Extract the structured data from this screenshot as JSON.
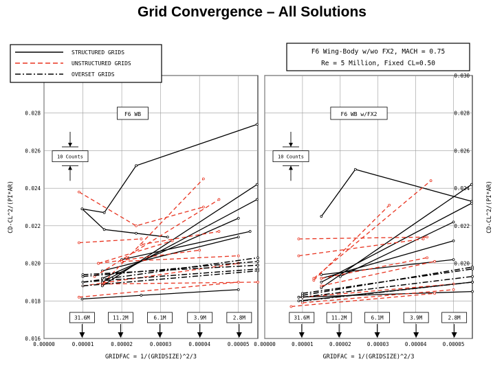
{
  "page_title": "Grid Convergence – All Solutions",
  "legend": [
    {
      "label": "STRUCTURED GRIDS",
      "style": "solid",
      "color": "#000000"
    },
    {
      "label": "UNSTRUCTURED GRIDS",
      "style": "dashed",
      "color": "#e8321e"
    },
    {
      "label": "OVERSET GRIDS",
      "style": "dashdot",
      "color": "#000000"
    }
  ],
  "info_box": {
    "line1": "F6 Wing-Body w/wo FX2, MACH = 0.75",
    "line2": "Re = 5 Million, Fixed CL=0.50"
  },
  "scale_marker": "10 Counts",
  "grid_sizes": [
    {
      "label": "31.6M",
      "x": 9.8e-06
    },
    {
      "label": "11.2M",
      "x": 1.97e-05
    },
    {
      "label": "6.1M",
      "x": 2.98e-05
    },
    {
      "label": "3.9M",
      "x": 4.01e-05
    },
    {
      "label": "2.8M",
      "x": 5.02e-05
    }
  ],
  "chart_data": [
    {
      "type": "line",
      "panel_label": "F6 WB",
      "xlabel": "GRIDFAC = 1/(GRIDSIZE)^2/3",
      "ylabel": "CD-CL^2/(PI*AR)",
      "xlim": [
        0,
        5.5e-05
      ],
      "ylim": [
        0.016,
        0.03
      ],
      "xticks": [
        "0.00000",
        "0.00001",
        "0.00002",
        "0.00003",
        "0.00004",
        "0.00005"
      ],
      "yticks": [
        "0.016",
        "0.018",
        "0.020",
        "0.022",
        "0.024",
        "0.026",
        "0.028"
      ],
      "grid": true,
      "series": [
        {
          "group": "structured",
          "x": [
            9.8e-06,
            1.55e-05,
            2.37e-05,
            5.48e-05
          ],
          "y": [
            0.0229,
            0.0227,
            0.0252,
            0.0274
          ]
        },
        {
          "group": "structured",
          "x": [
            9.8e-06,
            1.55e-05,
            2.37e-05,
            3.18e-05
          ],
          "y": [
            0.0229,
            0.0218,
            0.0216,
            0.0214
          ]
        },
        {
          "group": "structured",
          "x": [
            1.5e-05,
            5.48e-05
          ],
          "y": [
            0.0188,
            0.0242
          ]
        },
        {
          "group": "structured",
          "x": [
            1.5e-05,
            5.48e-05
          ],
          "y": [
            0.019,
            0.0234
          ]
        },
        {
          "group": "structured",
          "x": [
            1.5e-05,
            5e-05
          ],
          "y": [
            0.0192,
            0.0224
          ]
        },
        {
          "group": "structured",
          "x": [
            1.5e-05,
            5e-05
          ],
          "y": [
            0.0196,
            0.0214
          ]
        },
        {
          "group": "structured",
          "x": [
            2e-05,
            5.3e-05
          ],
          "y": [
            0.0202,
            0.0217
          ]
        },
        {
          "group": "structured",
          "x": [
            9.8e-06,
            2.5e-05,
            5e-05
          ],
          "y": [
            0.0181,
            0.0183,
            0.0186
          ]
        },
        {
          "group": "unstructured",
          "x": [
            9e-06,
            2.37e-05,
            4.1e-05
          ],
          "y": [
            0.0238,
            0.022,
            0.023
          ]
        },
        {
          "group": "unstructured",
          "x": [
            9e-06,
            2.5e-05
          ],
          "y": [
            0.0211,
            0.0213
          ]
        },
        {
          "group": "unstructured",
          "x": [
            1.5e-05,
            4.1e-05
          ],
          "y": [
            0.0189,
            0.0245
          ]
        },
        {
          "group": "unstructured",
          "x": [
            1.3e-05,
            4.5e-05
          ],
          "y": [
            0.0193,
            0.0234
          ]
        },
        {
          "group": "unstructured",
          "x": [
            1.4e-05,
            3.3e-05
          ],
          "y": [
            0.02,
            0.0212
          ]
        },
        {
          "group": "unstructured",
          "x": [
            2.5e-05,
            4.5e-05
          ],
          "y": [
            0.021,
            0.0217
          ]
        },
        {
          "group": "unstructured",
          "x": [
            1.4e-05,
            4e-05
          ],
          "y": [
            0.02,
            0.0207
          ]
        },
        {
          "group": "unstructured",
          "x": [
            9e-06,
            5e-05
          ],
          "y": [
            0.0182,
            0.019
          ]
        },
        {
          "group": "unstructured",
          "x": [
            1e-05,
            5e-05
          ],
          "y": [
            0.0188,
            0.02
          ]
        },
        {
          "group": "unstructured",
          "x": [
            2e-05,
            5e-05
          ],
          "y": [
            0.0201,
            0.0204
          ]
        },
        {
          "group": "unstructured",
          "x": [
            1.5e-05,
            5.5e-05
          ],
          "y": [
            0.0189,
            0.019
          ]
        },
        {
          "group": "overset",
          "x": [
            1e-05,
            5.5e-05
          ],
          "y": [
            0.019,
            0.0203
          ]
        },
        {
          "group": "overset",
          "x": [
            1e-05,
            5.5e-05
          ],
          "y": [
            0.0193,
            0.0201
          ]
        },
        {
          "group": "overset",
          "x": [
            1e-05,
            5.5e-05
          ],
          "y": [
            0.0194,
            0.0199
          ]
        },
        {
          "group": "overset",
          "x": [
            1e-05,
            5.5e-05
          ],
          "y": [
            0.019,
            0.0197
          ]
        },
        {
          "group": "overset",
          "x": [
            1e-05,
            5.5e-05
          ],
          "y": [
            0.0188,
            0.0196
          ]
        }
      ]
    },
    {
      "type": "line",
      "panel_label": "F6 WB w/FX2",
      "xlabel": "GRIDFAC = 1/(GRIDSIZE)^2/3",
      "ylabel": "CD-CL^2/(PI*AR)",
      "xlim": [
        0,
        5.5e-05
      ],
      "ylim": [
        0.016,
        0.03
      ],
      "xticks": [
        "0.00000",
        "0.00001",
        "0.00002",
        "0.00003",
        "0.00004",
        "0.00005"
      ],
      "yticks": [
        "0.020",
        "0.022",
        "0.024",
        "0.026",
        "0.028",
        "0.030"
      ],
      "grid": true,
      "series": [
        {
          "group": "structured",
          "x": [
            1.5e-05,
            2.4e-05,
            5.48e-05
          ],
          "y": [
            0.0225,
            0.025,
            0.0233
          ]
        },
        {
          "group": "structured",
          "x": [
            1.5e-05,
            5.48e-05
          ],
          "y": [
            0.0187,
            0.0242
          ]
        },
        {
          "group": "structured",
          "x": [
            1.5e-05,
            5.48e-05
          ],
          "y": [
            0.019,
            0.0232
          ]
        },
        {
          "group": "structured",
          "x": [
            2e-05,
            5e-05
          ],
          "y": [
            0.0193,
            0.0222
          ]
        },
        {
          "group": "structured",
          "x": [
            1.5e-05,
            5e-05
          ],
          "y": [
            0.0192,
            0.0212
          ]
        },
        {
          "group": "structured",
          "x": [
            1.5e-05,
            5e-05
          ],
          "y": [
            0.0194,
            0.0202
          ]
        },
        {
          "group": "structured",
          "x": [
            9e-06,
            5.5e-05
          ],
          "y": [
            0.018,
            0.019
          ]
        },
        {
          "group": "structured",
          "x": [
            9e-06,
            5.5e-05
          ],
          "y": [
            0.0182,
            0.0185
          ]
        },
        {
          "group": "unstructured",
          "x": [
            9e-06,
            4.3e-05
          ],
          "y": [
            0.0213,
            0.0214
          ]
        },
        {
          "group": "unstructured",
          "x": [
            9e-06,
            4.2e-05
          ],
          "y": [
            0.0204,
            0.0213
          ]
        },
        {
          "group": "unstructured",
          "x": [
            1.3e-05,
            3.3e-05
          ],
          "y": [
            0.0191,
            0.0231
          ]
        },
        {
          "group": "unstructured",
          "x": [
            1.3e-05,
            4.4e-05
          ],
          "y": [
            0.0192,
            0.0244
          ]
        },
        {
          "group": "unstructured",
          "x": [
            1.5e-05,
            4.3e-05
          ],
          "y": [
            0.0192,
            0.0203
          ]
        },
        {
          "group": "unstructured",
          "x": [
            1.5e-05,
            4.5e-05
          ],
          "y": [
            0.0188,
            0.0201
          ]
        },
        {
          "group": "unstructured",
          "x": [
            7e-06,
            4.5e-05
          ],
          "y": [
            0.0177,
            0.0184
          ]
        },
        {
          "group": "unstructured",
          "x": [
            1e-05,
            5e-05
          ],
          "y": [
            0.0182,
            0.0189
          ]
        },
        {
          "group": "unstructured",
          "x": [
            1e-05,
            5e-05
          ],
          "y": [
            0.0179,
            0.0186
          ]
        },
        {
          "group": "overset",
          "x": [
            1e-05,
            5.5e-05
          ],
          "y": [
            0.0183,
            0.0198
          ]
        },
        {
          "group": "overset",
          "x": [
            1e-05,
            5.5e-05
          ],
          "y": [
            0.0184,
            0.0197
          ]
        },
        {
          "group": "overset",
          "x": [
            1e-05,
            5.5e-05
          ],
          "y": [
            0.0182,
            0.0193
          ]
        },
        {
          "group": "overset",
          "x": [
            1e-05,
            5.5e-05
          ],
          "y": [
            0.018,
            0.019
          ]
        }
      ]
    }
  ]
}
